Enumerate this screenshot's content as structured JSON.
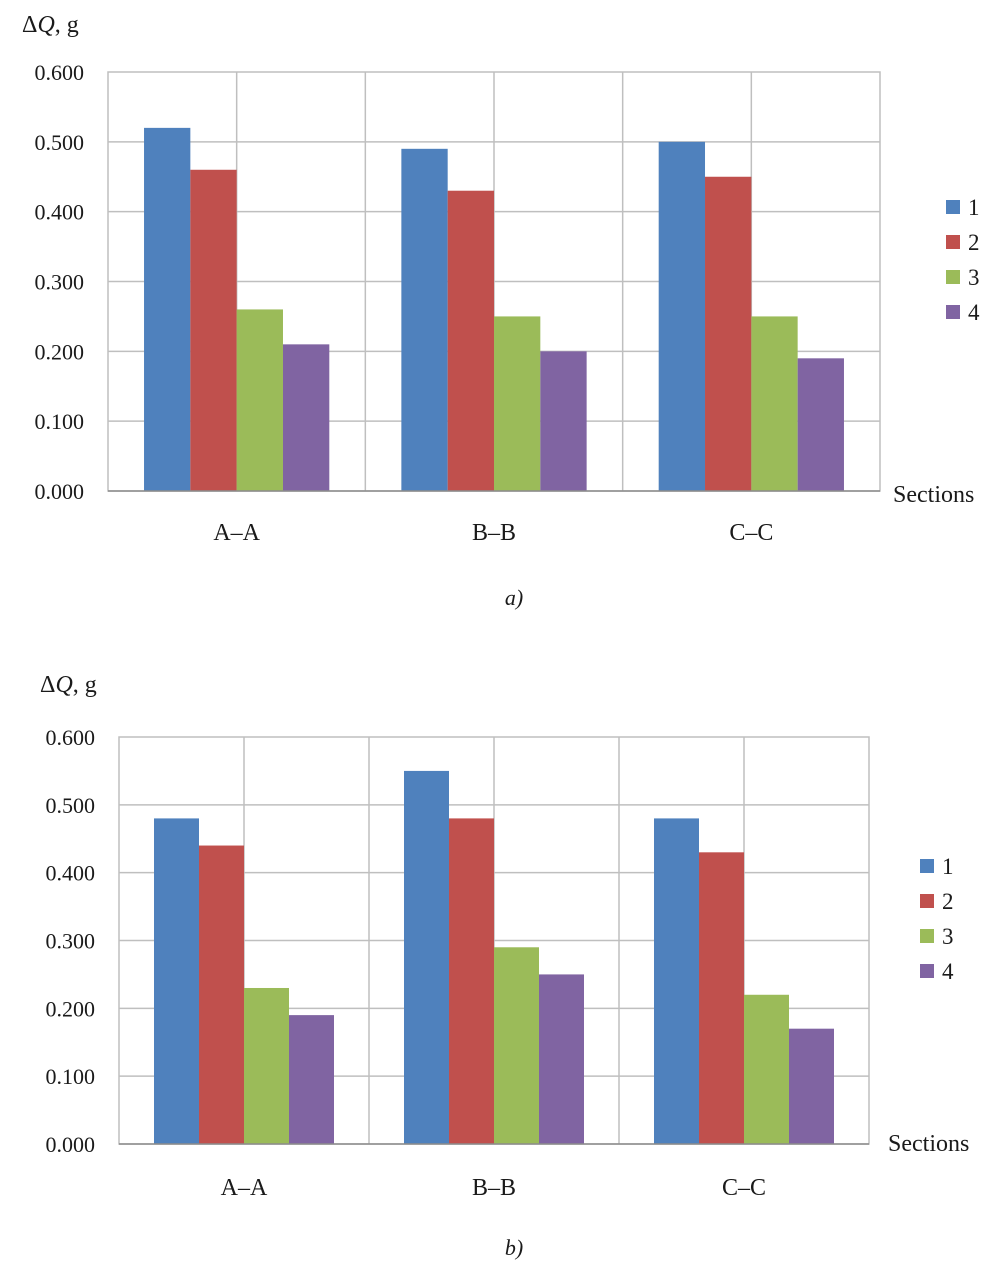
{
  "chart_data": [
    {
      "type": "bar",
      "caption": "a)",
      "ylabel": "ΔQ, g",
      "xlabel": "Sections",
      "categories": [
        "A–A",
        "B–B",
        "C–C"
      ],
      "ylim": [
        0,
        0.6
      ],
      "yticks": [
        "0.000",
        "0.100",
        "0.200",
        "0.300",
        "0.400",
        "0.500",
        "0.600"
      ],
      "grid": true,
      "legend_position": "right",
      "series": [
        {
          "name": "1",
          "color": "#4F81BD",
          "values": [
            0.52,
            0.49,
            0.5
          ]
        },
        {
          "name": "2",
          "color": "#C0504D",
          "values": [
            0.46,
            0.43,
            0.45
          ]
        },
        {
          "name": "3",
          "color": "#9BBB59",
          "values": [
            0.26,
            0.25,
            0.25
          ]
        },
        {
          "name": "4",
          "color": "#8064A2",
          "values": [
            0.21,
            0.2,
            0.19
          ]
        }
      ]
    },
    {
      "type": "bar",
      "caption": "b)",
      "ylabel": "ΔQ, g",
      "xlabel": "Sections",
      "categories": [
        "A–A",
        "B–B",
        "C–C"
      ],
      "ylim": [
        0,
        0.6
      ],
      "yticks": [
        "0.000",
        "0.100",
        "0.200",
        "0.300",
        "0.400",
        "0.500",
        "0.600"
      ],
      "grid": true,
      "legend_position": "right",
      "series": [
        {
          "name": "1",
          "color": "#4F81BD",
          "values": [
            0.48,
            0.55,
            0.48
          ]
        },
        {
          "name": "2",
          "color": "#C0504D",
          "values": [
            0.44,
            0.48,
            0.43
          ]
        },
        {
          "name": "3",
          "color": "#9BBB59",
          "values": [
            0.23,
            0.29,
            0.22
          ]
        },
        {
          "name": "4",
          "color": "#8064A2",
          "values": [
            0.19,
            0.25,
            0.17
          ]
        }
      ]
    }
  ]
}
